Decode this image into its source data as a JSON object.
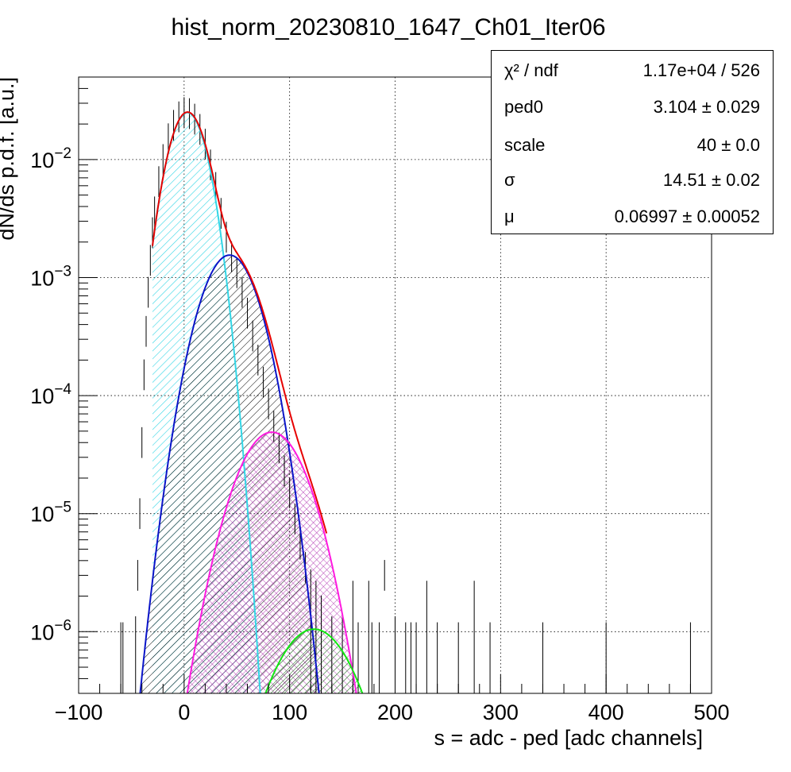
{
  "chart_data": {
    "type": "line",
    "title": "hist_norm_20230810_1647_Ch01_Iter06",
    "xlabel": "s = adc - ped [adc channels]",
    "ylabel": "dN/ds p.d.f. [a.u.]",
    "xlim": [
      -100,
      500
    ],
    "ylim": [
      3e-07,
      0.05
    ],
    "yscale": "log",
    "grid": true,
    "x_ticks": [
      "−100",
      "0",
      "100",
      "200",
      "300",
      "400",
      "500"
    ],
    "y_ticks": [
      {
        "base": "10",
        "exp": "−2"
      },
      {
        "base": "10",
        "exp": "−3"
      },
      {
        "base": "10",
        "exp": "−4"
      },
      {
        "base": "10",
        "exp": "−5"
      },
      {
        "base": "10",
        "exp": "−6"
      }
    ],
    "peaks": [
      {
        "color": "#33d6e6",
        "amplitude": 0.025,
        "mean": 3.1,
        "sigma": 14.5,
        "fill": "hatch-diag-cyan",
        "xmin": -30
      },
      {
        "color": "#0a14c8",
        "amplitude": 0.00155,
        "mean": 43.1,
        "sigma": 20.5,
        "fill": "hatch-diag-black"
      },
      {
        "color": "#ff1ae0",
        "amplitude": 4.9e-05,
        "mean": 83.1,
        "sigma": 25.1,
        "fill": "hatch-cross-purple"
      },
      {
        "color": "#12e612",
        "amplitude": 1.05e-06,
        "mean": 123.1,
        "sigma": 29.0,
        "fill": "hatch-diag-green"
      }
    ],
    "total_fit": {
      "color": "#e60000",
      "xmin": -30,
      "xmax": 135
    },
    "histogram": {
      "color": "#000000",
      "points": [
        [
          -46,
          1e-06
        ],
        [
          -44,
          3e-06
        ],
        [
          -42,
          1e-05
        ],
        [
          -40,
          4e-05
        ],
        [
          -38,
          0.00015
        ],
        [
          -36,
          0.00035
        ],
        [
          -34,
          0.00075
        ],
        [
          -32,
          0.0014
        ],
        [
          -30,
          0.0024
        ],
        [
          -28,
          0.0036
        ],
        [
          -24,
          0.0065
        ],
        [
          -20,
          0.01
        ],
        [
          -15,
          0.015
        ],
        [
          -10,
          0.0195
        ],
        [
          -5,
          0.023
        ],
        [
          0,
          0.025
        ],
        [
          5,
          0.0245
        ],
        [
          10,
          0.022
        ],
        [
          15,
          0.018
        ],
        [
          20,
          0.0135
        ],
        [
          25,
          0.009
        ],
        [
          30,
          0.0058
        ],
        [
          35,
          0.0035
        ],
        [
          40,
          0.0022
        ],
        [
          45,
          0.0015
        ],
        [
          50,
          0.0011
        ],
        [
          55,
          0.00075
        ],
        [
          60,
          0.0005
        ],
        [
          65,
          0.00032
        ],
        [
          70,
          0.0002
        ],
        [
          75,
          0.00013
        ],
        [
          80,
          8.5e-05
        ],
        [
          85,
          5.5e-05
        ],
        [
          90,
          3.6e-05
        ],
        [
          95,
          2.3e-05
        ],
        [
          100,
          1.5e-05
        ],
        [
          105,
          9e-06
        ],
        [
          110,
          5.5e-06
        ],
        [
          115,
          3.5e-06
        ],
        [
          120,
          2.5e-06
        ],
        [
          125,
          2e-06
        ],
        [
          130,
          1.5e-06
        ],
        [
          140,
          1e-06
        ],
        [
          150,
          1e-06
        ],
        [
          160,
          2e-06
        ],
        [
          175,
          2e-06
        ],
        [
          190,
          3e-06
        ],
        [
          200,
          1e-06
        ],
        [
          230,
          2e-06
        ],
        [
          275,
          2e-06
        ]
      ],
      "sparse_x": [
        -60,
        -58,
        165,
        178,
        185,
        200,
        210,
        215,
        220,
        240,
        260,
        290,
        340,
        400,
        480
      ]
    },
    "stats": [
      {
        "name": "χ² / ndf",
        "value": "1.17e+04 / 526"
      },
      {
        "name": "ped0",
        "value": "3.104 ± 0.029"
      },
      {
        "name": "scale",
        "value": "40 ± 0.0"
      },
      {
        "name": "σ",
        "value": "14.51 ± 0.02"
      },
      {
        "name": "μ",
        "value": "0.06997 ± 0.00052"
      }
    ]
  }
}
